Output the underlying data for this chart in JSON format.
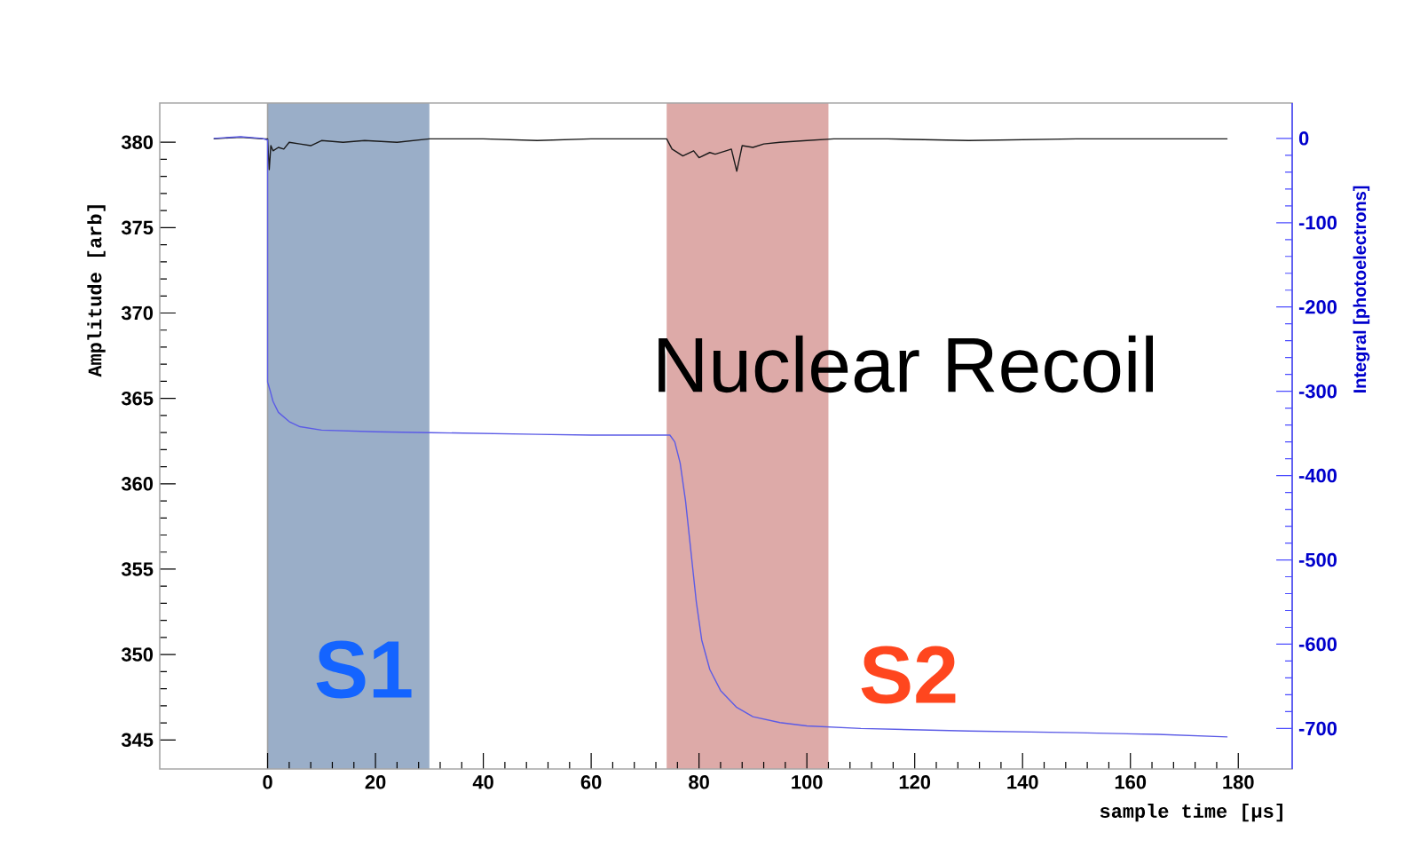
{
  "chart_data": {
    "type": "line",
    "xlabel": "sample time [µs]",
    "ylabel": "Amplitude [arb]",
    "y2label": "Integral [photoelectrons]",
    "xlim": [
      -20,
      190
    ],
    "xticks": [
      0,
      20,
      40,
      60,
      80,
      100,
      120,
      140,
      160,
      180
    ],
    "ylim": [
      343.3,
      382.3
    ],
    "yticks": [
      345,
      350,
      355,
      360,
      365,
      370,
      375,
      380
    ],
    "y2lim": [
      -748,
      42
    ],
    "y2ticks": [
      -700,
      -600,
      -500,
      -400,
      -300,
      -200,
      -100,
      0
    ],
    "grid": false,
    "marker": "none",
    "line_style": "solid",
    "series": [
      {
        "color": "#1a1a1a",
        "x": [
          -10,
          -5,
          -1,
          0,
          0.3,
          0.6,
          1,
          2,
          3,
          4,
          6,
          8,
          10,
          14,
          18,
          24,
          30,
          40,
          50,
          60,
          70,
          74,
          75,
          77,
          79,
          80,
          82,
          83,
          85,
          86,
          87,
          88,
          90,
          92,
          95,
          100,
          105,
          115,
          130,
          150,
          165,
          178
        ],
        "values": [
          380.2,
          380.3,
          380.2,
          380.2,
          378.4,
          379.8,
          379.5,
          379.7,
          379.6,
          380.0,
          379.9,
          379.8,
          380.1,
          380.0,
          380.1,
          380.0,
          380.2,
          380.2,
          380.1,
          380.2,
          380.2,
          380.2,
          379.6,
          379.2,
          379.5,
          379.1,
          379.4,
          379.3,
          379.5,
          379.6,
          378.3,
          379.8,
          379.7,
          379.9,
          380.0,
          380.1,
          380.2,
          380.2,
          380.1,
          380.2,
          380.2,
          380.2
        ]
      },
      {
        "axis": "y2",
        "color": "#5b5be6",
        "x": [
          -10,
          -5,
          -1,
          0,
          0,
          0.5,
          1,
          2,
          4,
          6,
          10,
          20,
          30,
          50,
          60,
          74.6,
          75.5,
          76.5,
          77.5,
          78.5,
          79.5,
          80.5,
          82,
          84,
          87,
          90,
          95,
          100,
          110,
          130,
          150,
          165,
          178
        ],
        "values": [
          0,
          2,
          0,
          -2,
          -289,
          -300,
          -312,
          -325,
          -336,
          -342,
          -346,
          -348,
          -349,
          -351,
          -352,
          -352,
          -360,
          -385,
          -430,
          -490,
          -550,
          -595,
          -630,
          -655,
          -675,
          -686,
          -693,
          -697,
          -700,
          -703,
          -705,
          -707,
          -710
        ]
      }
    ],
    "bands": [
      {
        "axis": "x",
        "from": 0,
        "to": 30,
        "color": "#9aaec8"
      },
      {
        "axis": "x",
        "from": 74,
        "to": 104,
        "color": "#ddaaa8"
      }
    ],
    "ref_lines": [
      {
        "axis": "x",
        "value": 0,
        "color": "#a0a0a0"
      }
    ],
    "annotations": [
      "Nuclear Recoil",
      "S1",
      "S2"
    ]
  }
}
